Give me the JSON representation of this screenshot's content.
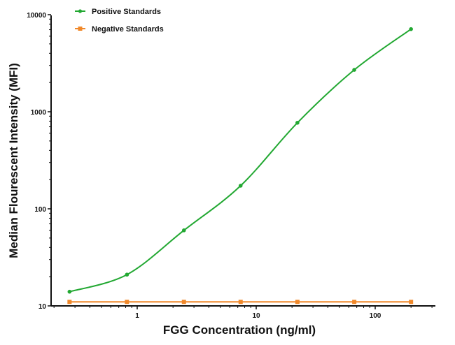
{
  "chart_data": {
    "type": "line",
    "title": "",
    "xlabel": "FGG Concentration (ng/ml)",
    "ylabel": "Median Flourescent Intensity (MFI)",
    "xscale": "log",
    "yscale": "log",
    "xlim": [
      0.2,
      300
    ],
    "ylim": [
      10,
      10000
    ],
    "x_ticks": [
      1,
      10,
      100
    ],
    "x_tick_labels": [
      "1",
      "10",
      "100"
    ],
    "y_ticks": [
      10,
      100,
      1000,
      10000
    ],
    "y_tick_labels": [
      "10",
      "100",
      "1000",
      "10000"
    ],
    "grid": false,
    "legend_position": "top-left",
    "x": [
      0.27,
      0.82,
      2.47,
      7.4,
      22.2,
      66.7,
      200
    ],
    "series": [
      {
        "name": "Positive Standards",
        "color": "#22a832",
        "marker": "circle",
        "fit": "4PL sigmoid curve",
        "values": [
          14,
          21,
          60,
          173,
          770,
          2700,
          7100
        ]
      },
      {
        "name": "Negative Standards",
        "color": "#f0882a",
        "marker": "square",
        "fit": "straight line",
        "values": [
          11,
          11,
          11,
          11,
          11,
          11,
          11
        ]
      }
    ]
  },
  "legend": {
    "positive": "Positive Standards",
    "negative": "Negative Standards"
  },
  "axes": {
    "x_title": "FGG Concentration (ng/ml)",
    "y_title": "Median Flourescent Intensity (MFI)"
  }
}
